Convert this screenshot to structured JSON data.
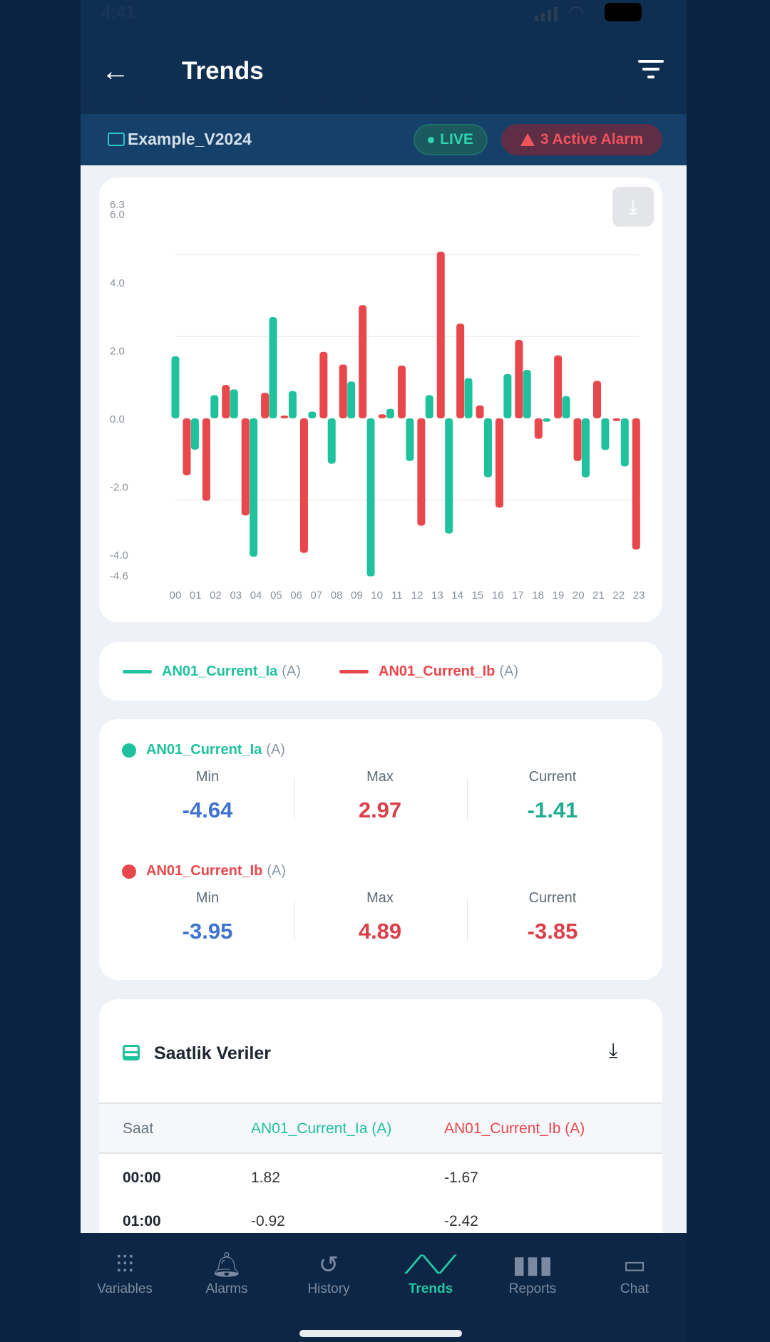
{
  "status": {
    "time": "4:41"
  },
  "header": {
    "title": "Trends"
  },
  "project": {
    "name": "Example_V2024",
    "live_label": "LIVE",
    "alarm_label": "3 Active Alarm"
  },
  "colors": {
    "ia": "#1fc29c",
    "ib": "#e8474b",
    "min": "#3f73d0"
  },
  "chart_data": {
    "type": "bar",
    "categories": [
      "00",
      "01",
      "02",
      "03",
      "04",
      "05",
      "06",
      "07",
      "08",
      "09",
      "10",
      "11",
      "12",
      "13",
      "14",
      "15",
      "16",
      "17",
      "18",
      "19",
      "20",
      "21",
      "22",
      "23"
    ],
    "series": [
      {
        "name": "AN01_Current_Ia",
        "values": [
          1.82,
          -0.92,
          0.68,
          0.85,
          -4.06,
          2.97,
          0.8,
          0.2,
          -1.33,
          1.08,
          -4.64,
          0.28,
          -1.25,
          0.68,
          -3.38,
          1.18,
          -1.73,
          1.3,
          1.42,
          -0.1,
          0.65,
          -1.73,
          -0.93,
          -1.41
        ]
      },
      {
        "name": "AN01_Current_Ib",
        "values": [
          -1.67,
          -2.42,
          0.98,
          -2.85,
          0.75,
          0.08,
          -3.95,
          1.95,
          1.58,
          3.32,
          0.12,
          1.55,
          -3.15,
          4.89,
          2.78,
          0.38,
          -2.62,
          2.3,
          -0.6,
          1.85,
          -1.25,
          1.1,
          -0.08,
          -3.85
        ]
      }
    ],
    "yticks": [
      "6.3",
      "6.0",
      "4.0",
      "2.0",
      "0.0",
      "-2.0",
      "-4.0",
      "-4.6"
    ],
    "ylim": [
      -4.6,
      6.3
    ],
    "gridlines": [
      4.8,
      2.4,
      -2.4
    ],
    "grid": true,
    "legend": "below"
  },
  "legend": {
    "items": [
      {
        "label": "AN01_Current_Ia",
        "unit": "(A)"
      },
      {
        "label": "AN01_Current_Ib",
        "unit": "(A)"
      }
    ]
  },
  "stats": {
    "min_label": "Min",
    "max_label": "Max",
    "current_label": "Current",
    "series": [
      {
        "label": "AN01_Current_Ia",
        "unit": "(A)",
        "min": "-4.64",
        "max": "2.97",
        "current": "-1.41"
      },
      {
        "label": "AN01_Current_Ib",
        "unit": "(A)",
        "min": "-3.95",
        "max": "4.89",
        "current": "-3.85"
      }
    ]
  },
  "table": {
    "title": "Saatlik Veriler",
    "headers": [
      "Saat",
      "AN01_Current_Ia (A)",
      "AN01_Current_Ib (A)"
    ],
    "rows": [
      [
        "00:00",
        "1.82",
        "-1.67"
      ],
      [
        "01:00",
        "-0.92",
        "-2.42"
      ]
    ]
  },
  "nav": {
    "items": [
      {
        "label": "Variables",
        "icon": "sliders-icon"
      },
      {
        "label": "Alarms",
        "icon": "bell-icon"
      },
      {
        "label": "History",
        "icon": "history-icon"
      },
      {
        "label": "Trends",
        "icon": "trend-icon",
        "active": true
      },
      {
        "label": "Reports",
        "icon": "bar-chart-icon"
      },
      {
        "label": "Chat",
        "icon": "chat-icon"
      }
    ]
  }
}
